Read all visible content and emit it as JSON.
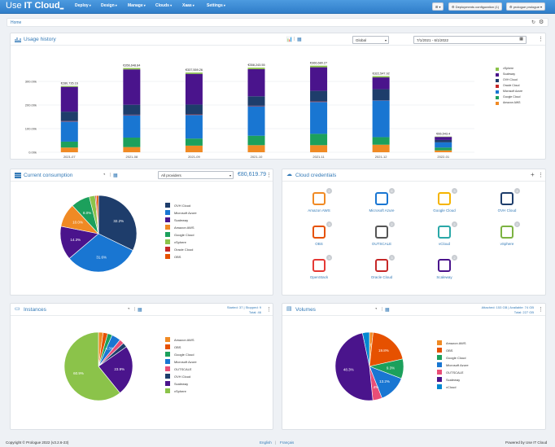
{
  "brand": {
    "title": "Use IT Cloud"
  },
  "nav": {
    "menus": [
      "Deploy",
      "Design",
      "Manage",
      "Clouds",
      "Xaas",
      "Settings"
    ],
    "grid_btn": "⊞ ▾",
    "deploy_config": "⚙ Deployments configuration (1)",
    "user": "⚙ prologue prologue ▾"
  },
  "breadcrumb": {
    "home": "Home"
  },
  "usage": {
    "title": "Usage history",
    "period_select": "Global",
    "date_range": "7/1/2021 - 6/1/2022",
    "legend": [
      {
        "label": "vSphere",
        "color": "#8bc34a"
      },
      {
        "label": "Scaleway",
        "color": "#4a148c"
      },
      {
        "label": "OVH Cloud",
        "color": "#1e3d6b"
      },
      {
        "label": "Oracle Cloud",
        "color": "#c62828"
      },
      {
        "label": "Microsoft Azure",
        "color": "#1976d2"
      },
      {
        "label": "Google Cloud",
        "color": "#1ca05c"
      },
      {
        "label": "Amazon AWS",
        "color": "#f08a24"
      }
    ]
  },
  "chart_data": {
    "type": "bar",
    "stacked": true,
    "categories": [
      "2021-07",
      "2021-08",
      "2021-09",
      "2021-10",
      "2021-11",
      "2021-12",
      "2022-01"
    ],
    "totals_labels": [
      "€280,735.16",
      "€356,648.84",
      "€337,559.26",
      "€358,243.55",
      "€366,680.27",
      "€322,547.92",
      "€66,543.4"
    ],
    "yticks": [
      "0.00k",
      "100.00k",
      "200.00k",
      "300.00k"
    ],
    "ylim": [
      0,
      400000
    ],
    "series": [
      {
        "name": "Amazon AWS",
        "color": "#f08a24",
        "values": [
          20000,
          22000,
          28000,
          30000,
          30000,
          32000,
          8000
        ]
      },
      {
        "name": "Google Cloud",
        "color": "#1ca05c",
        "values": [
          25000,
          40000,
          30000,
          40000,
          48000,
          32000,
          12000
        ]
      },
      {
        "name": "Microsoft Azure",
        "color": "#1976d2",
        "values": [
          85000,
          95000,
          100000,
          125000,
          135000,
          155000,
          22000
        ]
      },
      {
        "name": "Oracle Cloud",
        "color": "#c62828",
        "values": [
          2000,
          2000,
          2000,
          2000,
          2000,
          1000,
          0
        ]
      },
      {
        "name": "OVH Cloud",
        "color": "#1e3d6b",
        "values": [
          40000,
          42000,
          42000,
          40000,
          45000,
          47000,
          10000
        ]
      },
      {
        "name": "Scaleway",
        "color": "#4a148c",
        "values": [
          105000,
          150000,
          130000,
          115000,
          100000,
          50000,
          13000
        ]
      },
      {
        "name": "vSphere",
        "color": "#8bc34a",
        "values": [
          3735,
          5649,
          5559,
          6244,
          6680,
          5548,
          1543
        ]
      }
    ]
  },
  "consumption": {
    "title": "Current consumption",
    "provider_select": "All providers",
    "total": "€80,619.79",
    "slices": [
      {
        "label": "OVH Cloud",
        "value": 32.2,
        "color": "#1e3d6b",
        "text": "32.2%"
      },
      {
        "label": "Microsoft Azure",
        "value": 31.6,
        "color": "#1976d2",
        "text": "31.6%"
      },
      {
        "label": "Scaleway",
        "value": 14.3,
        "color": "#4a148c",
        "text": "14.3%"
      },
      {
        "label": "Amazon AWS",
        "value": 10.0,
        "color": "#f08a24",
        "text": "10.0%"
      },
      {
        "label": "Google Cloud",
        "value": 8.0,
        "color": "#1ca05c",
        "text": "8.0%"
      },
      {
        "label": "vSphere",
        "value": 2.5,
        "color": "#8bc34a",
        "text": ""
      },
      {
        "label": "Oracle Cloud",
        "value": 0.5,
        "color": "#c62828",
        "text": ""
      },
      {
        "label": "OBS",
        "value": 0.9,
        "color": "#e65100",
        "text": ""
      }
    ]
  },
  "credentials": {
    "title": "Cloud credentials",
    "items": [
      {
        "label": "Amazon AWS",
        "count": "2"
      },
      {
        "label": "Microsoft Azure",
        "count": "6"
      },
      {
        "label": "Google Cloud",
        "count": "3"
      },
      {
        "label": "OVH Cloud",
        "count": "4"
      },
      {
        "label": "OBS",
        "count": "3"
      },
      {
        "label": "OUTSCALE",
        "count": "2"
      },
      {
        "label": "vCloud",
        "count": "2"
      },
      {
        "label": "vSphere",
        "count": "2"
      },
      {
        "label": "OpenStack",
        "count": "3"
      },
      {
        "label": "Oracle Cloud",
        "count": "3"
      },
      {
        "label": "Scaleway",
        "count": "2"
      }
    ]
  },
  "instances": {
    "title": "Instances",
    "status1": "Started: 37 | Stopped: 9",
    "status2": "Total: 46",
    "slices": [
      {
        "label": "Amazon AWS",
        "value": 2.2,
        "color": "#f08a24",
        "text": ""
      },
      {
        "label": "OBS",
        "value": 2.2,
        "color": "#e65100",
        "text": ""
      },
      {
        "label": "Google Cloud",
        "value": 2.2,
        "color": "#1ca05c",
        "text": ""
      },
      {
        "label": "Microsoft Azure",
        "value": 4.3,
        "color": "#1976d2",
        "text": "4.3%"
      },
      {
        "label": "OUTSCALE",
        "value": 2.2,
        "color": "#e94e77",
        "text": ""
      },
      {
        "label": "OVH Cloud",
        "value": 2.2,
        "color": "#1e3d6b",
        "text": ""
      },
      {
        "label": "Scaleway",
        "value": 23.9,
        "color": "#4a148c",
        "text": "23.9%"
      },
      {
        "label": "vSphere",
        "value": 60.9,
        "color": "#8bc34a",
        "text": "60.9%"
      }
    ]
  },
  "volumes": {
    "title": "Volumes",
    "status1": "Attached: 153 GB | Available: 74 GB",
    "status2": "Total: 227 GB",
    "slices": [
      {
        "label": "Amazon AWS",
        "value": 1.7,
        "color": "#f08a24",
        "text": "1.7%"
      },
      {
        "label": "OBS",
        "value": 19.8,
        "color": "#e65100",
        "text": "19.8%"
      },
      {
        "label": "Google Cloud",
        "value": 9.3,
        "color": "#1ca05c",
        "text": "9.3%"
      },
      {
        "label": "Microsoft Azure",
        "value": 13.2,
        "color": "#1976d2",
        "text": "13.2%"
      },
      {
        "label": "OUTSCALE",
        "value": 4.4,
        "color": "#e94e77",
        "text": "4.4%"
      },
      {
        "label": "Scaleway",
        "value": 48.3,
        "color": "#4a148c",
        "text": "48.3%"
      },
      {
        "label": "vCloud",
        "value": 3.3,
        "color": "#0288d1",
        "text": ""
      }
    ]
  },
  "footer": {
    "copyright": "Copyright © Prologue 2022 (v3.2.6-23)",
    "lang_en": "English",
    "lang_sep": "|",
    "lang_fr": "Français",
    "powered": "Powered by  Use IT Cloud"
  }
}
